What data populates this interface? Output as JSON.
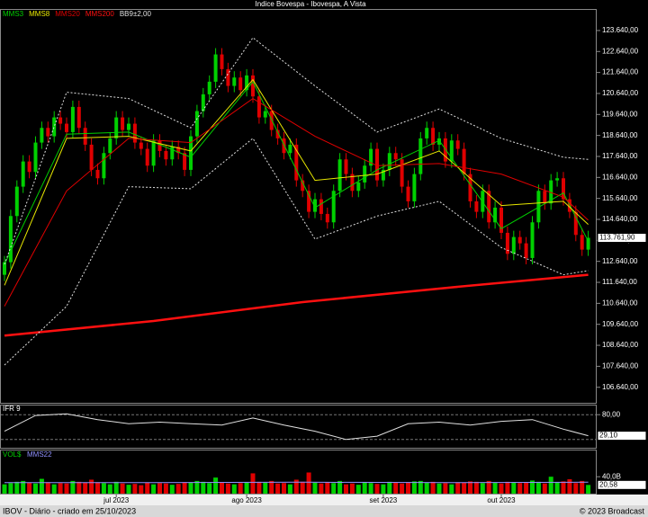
{
  "chart_data": [
    {
      "type": "candlestick",
      "title": "Indice Bovespa - Ibovespa, A Vista",
      "up_color": "#00d000",
      "down_color": "#e00000",
      "open": [
        112000,
        112600,
        114800,
        116200,
        117400,
        116900,
        118300,
        119000,
        118600,
        119500,
        119200,
        118800,
        120000,
        119000,
        118200,
        117000,
        116600,
        117800,
        118500,
        119500,
        118900,
        119200,
        118300,
        118000,
        117200,
        118400,
        117900,
        117500,
        118100,
        117800,
        117000,
        118600,
        119800,
        120600,
        121200,
        122500,
        121800,
        121000,
        121400,
        120800,
        121500,
        120500,
        119500,
        119800,
        118900,
        118500,
        117800,
        118200,
        116500,
        116000,
        115000,
        115600,
        114900,
        114500,
        116000,
        117500,
        116800,
        116000,
        116400,
        117200,
        118000,
        116500,
        117000,
        117800,
        117500,
        116200,
        115500,
        116800,
        118500,
        119000,
        118200,
        118500,
        117400,
        118400,
        118000,
        116800,
        115500,
        115000,
        116000,
        114500,
        115200,
        114000,
        113000,
        113800,
        113500,
        112800,
        114500,
        116000,
        115400,
        116500,
        116600,
        115600,
        115000,
        113900,
        113200
      ],
      "high": [
        112900,
        115100,
        116500,
        117700,
        117700,
        118600,
        119300,
        119300,
        119800,
        119800,
        119500,
        120300,
        120300,
        119300,
        118500,
        117300,
        118100,
        118800,
        119800,
        119800,
        119500,
        119500,
        118600,
        118300,
        118700,
        118700,
        118200,
        118400,
        118400,
        118100,
        118900,
        120100,
        120900,
        121500,
        122800,
        122800,
        122100,
        121700,
        121700,
        121800,
        121800,
        120800,
        120100,
        120100,
        119200,
        118800,
        118500,
        118500,
        116800,
        116300,
        115900,
        115900,
        115200,
        116300,
        117800,
        117800,
        117100,
        116700,
        117500,
        118300,
        118300,
        117300,
        118100,
        118100,
        117800,
        116500,
        117100,
        118800,
        119300,
        119300,
        118800,
        118800,
        118700,
        118700,
        118300,
        117100,
        115800,
        116300,
        116300,
        115500,
        115500,
        114300,
        114100,
        114100,
        113800,
        114800,
        116300,
        116300,
        116800,
        116900,
        116900,
        115900,
        115300,
        114200,
        114100
      ],
      "low": [
        111700,
        112300,
        114500,
        115900,
        116600,
        116600,
        118000,
        118300,
        118300,
        118900,
        118500,
        118500,
        118700,
        117900,
        116700,
        116300,
        116300,
        117500,
        118200,
        118600,
        118600,
        118000,
        117700,
        116900,
        116900,
        117600,
        117200,
        117200,
        117500,
        116700,
        116700,
        118300,
        119500,
        120300,
        120900,
        121500,
        120700,
        120700,
        120500,
        120500,
        120200,
        119200,
        119200,
        118600,
        118200,
        117500,
        117500,
        116200,
        115700,
        114700,
        114700,
        114600,
        114200,
        114200,
        115700,
        116500,
        115700,
        115700,
        116100,
        116900,
        116200,
        116200,
        116700,
        117200,
        115900,
        115200,
        115200,
        116500,
        118200,
        117900,
        117900,
        117100,
        117100,
        117700,
        116500,
        115200,
        114700,
        114700,
        114200,
        114200,
        113700,
        112700,
        112700,
        113200,
        112500,
        112500,
        114200,
        115100,
        115100,
        116200,
        115300,
        114700,
        113600,
        112900,
        112900
      ],
      "close": [
        112600,
        114800,
        116200,
        117400,
        116900,
        118300,
        119000,
        118600,
        119500,
        119200,
        118800,
        120000,
        119000,
        118200,
        117000,
        116600,
        117800,
        118500,
        119500,
        118900,
        119200,
        118300,
        118000,
        117200,
        118400,
        117900,
        117500,
        118100,
        117800,
        117000,
        118600,
        119800,
        120600,
        121200,
        122500,
        121800,
        121000,
        121400,
        120800,
        121500,
        120500,
        119500,
        119800,
        118900,
        118500,
        117800,
        118200,
        116500,
        116000,
        115000,
        115600,
        114900,
        114500,
        116000,
        117500,
        116800,
        116000,
        116400,
        117200,
        118000,
        116500,
        117000,
        117800,
        117500,
        116200,
        115500,
        116800,
        118500,
        119000,
        118200,
        118500,
        117400,
        118400,
        118000,
        116800,
        115500,
        115000,
        116000,
        114500,
        115200,
        114000,
        113000,
        113800,
        113500,
        112800,
        114500,
        116000,
        115400,
        116500,
        116600,
        115600,
        115000,
        113900,
        113200,
        113761.9
      ],
      "last_label": "113.761,90",
      "series": [
        {
          "name": "MMS3",
          "color": "#00d000",
          "x": [
            0,
            10,
            20,
            30,
            40,
            50,
            60,
            70,
            80,
            90,
            94
          ],
          "values": [
            112500,
            118700,
            118800,
            117600,
            121200,
            115200,
            117000,
            118400,
            114200,
            115900,
            113600
          ]
        },
        {
          "name": "MMS8",
          "color": "#e8e800",
          "x": [
            0,
            10,
            20,
            30,
            40,
            50,
            60,
            70,
            80,
            90,
            94
          ],
          "values": [
            111500,
            118500,
            118600,
            117900,
            121300,
            116500,
            116800,
            117900,
            115300,
            115500,
            114400
          ]
        },
        {
          "name": "MMS20",
          "color": "#e00000",
          "x": [
            0,
            10,
            20,
            30,
            40,
            50,
            60,
            70,
            80,
            90,
            94
          ],
          "values": [
            110500,
            116000,
            118500,
            118300,
            120400,
            118600,
            117200,
            117300,
            116800,
            115700,
            114600
          ]
        },
        {
          "name": "MMS200",
          "color": "#ff1010",
          "line_width": 2.5,
          "x": [
            0,
            24,
            48,
            72,
            94
          ],
          "values": [
            109100,
            109800,
            110700,
            111400,
            112000
          ]
        },
        {
          "name": "BB9±2,00",
          "color": "#e0e0e0",
          "dashed": true,
          "x": [
            0,
            10,
            20,
            30,
            40,
            50,
            60,
            70,
            80,
            90,
            94
          ],
          "upper": [
            112500,
            120700,
            120400,
            119000,
            123300,
            121000,
            118800,
            119900,
            118500,
            117600,
            117500
          ],
          "lower": [
            107700,
            110500,
            116200,
            116100,
            118500,
            113700,
            114800,
            115500,
            113300,
            112000,
            112200
          ]
        }
      ],
      "ylim": [
        105900,
        124580
      ],
      "yticks": [
        {
          "value": 106640,
          "label": "106.640,00"
        },
        {
          "value": 107640,
          "label": "107.640,00"
        },
        {
          "value": 108640,
          "label": "108.640,00"
        },
        {
          "value": 109640,
          "label": "109.640,00"
        },
        {
          "value": 110640,
          "label": "110.640,00"
        },
        {
          "value": 111640,
          "label": "111.640,00"
        },
        {
          "value": 112640,
          "label": "112.640,00"
        },
        {
          "value": 113640,
          "label": "113.640,00"
        },
        {
          "value": 114640,
          "label": "114.640,00"
        },
        {
          "value": 115640,
          "label": "115.640,00"
        },
        {
          "value": 116640,
          "label": "116.640,00"
        },
        {
          "value": 117640,
          "label": "117.640,00"
        },
        {
          "value": 118640,
          "label": "118.640,00"
        },
        {
          "value": 119640,
          "label": "119.640,00"
        },
        {
          "value": 120640,
          "label": "120.640,00"
        },
        {
          "value": 121640,
          "label": "121.640,00"
        },
        {
          "value": 122640,
          "label": "122.640,00"
        },
        {
          "value": 123640,
          "label": "123.640,00"
        }
      ],
      "xticks": [
        {
          "value": 18,
          "label": "jul 2023"
        },
        {
          "value": 39,
          "label": "ago 2023"
        },
        {
          "value": 61,
          "label": "set 2023"
        },
        {
          "value": 80,
          "label": "out 2023"
        }
      ]
    },
    {
      "type": "line",
      "title": "IFR 9",
      "color": "#e0e0e0",
      "x": [
        0,
        5,
        10,
        15,
        20,
        25,
        30,
        35,
        40,
        45,
        50,
        55,
        60,
        65,
        70,
        75,
        80,
        85,
        90,
        94
      ],
      "values": [
        40,
        78,
        82,
        68,
        58,
        62,
        58,
        55,
        72,
        55,
        40,
        20,
        28,
        58,
        62,
        55,
        64,
        68,
        45,
        29.1
      ],
      "last_label": "29,10",
      "ylim": [
        0,
        100
      ],
      "levels": [
        20,
        80
      ],
      "yticks": [
        {
          "value": 80,
          "label": "80,00"
        }
      ]
    },
    {
      "type": "bar",
      "title": "VOL$",
      "values": [
        22,
        25,
        28,
        30,
        26,
        24,
        35,
        27,
        22,
        25,
        24,
        30,
        28,
        26,
        33,
        27,
        25,
        22,
        28,
        24,
        21,
        23,
        20,
        26,
        22,
        25,
        24,
        21,
        23,
        27,
        26,
        30,
        28,
        25,
        38,
        26,
        24,
        22,
        25,
        27,
        48,
        28,
        26,
        30,
        24,
        25,
        22,
        33,
        28,
        50,
        26,
        24,
        27,
        25,
        30,
        22,
        24,
        21,
        27,
        25,
        23,
        22,
        28,
        26,
        24,
        27,
        29,
        30,
        26,
        28,
        24,
        25,
        22,
        27,
        26,
        29,
        28,
        25,
        30,
        26,
        24,
        28,
        27,
        25,
        26,
        31,
        28,
        24,
        40,
        27,
        29,
        34,
        25,
        30,
        20.58
      ],
      "last_label": "20,58",
      "ylim": [
        0,
        100
      ],
      "yticks": [
        {
          "value": 40,
          "label": "40,0B"
        }
      ],
      "series": [
        {
          "name": "MMS22",
          "color": "#9090ff",
          "x": [
            0,
            24,
            48,
            72,
            94
          ],
          "values": [
            26,
            26,
            27,
            26,
            27
          ]
        }
      ]
    }
  ],
  "footer": {
    "left": "IBOV - Diário - criado em 25/10/2023",
    "right": "© 2023 Broadcast"
  }
}
